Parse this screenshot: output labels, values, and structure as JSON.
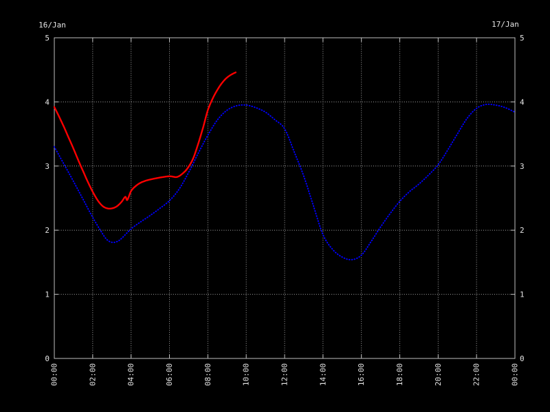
{
  "page": {
    "background": "#000000"
  },
  "colors": {
    "background": "#000000",
    "border": "#c0c0c0",
    "grid": "#a8a8a8",
    "text": "#e6e6e6",
    "series_blue": "#0000ff",
    "series_red": "#ff0000"
  },
  "chart_data": {
    "type": "line",
    "title": "",
    "grid": {
      "style": "dotted",
      "on": true
    },
    "legend": "none",
    "x_axis": {
      "range_hours": [
        0,
        24
      ],
      "tick_hours": [
        0,
        2,
        4,
        6,
        8,
        10,
        12,
        14,
        16,
        18,
        20,
        22,
        24
      ],
      "tick_labels": [
        "00:00",
        "02:00",
        "04:00",
        "06:00",
        "08:00",
        "10:00",
        "12:00",
        "14:00",
        "16:00",
        "18:00",
        "20:00",
        "22:00",
        "00:00"
      ],
      "labels_rotated_90": true
    },
    "y_axis_left": {
      "title": "16/Jan",
      "range": [
        0,
        5
      ],
      "tick_values": [
        0,
        1,
        2,
        3,
        4,
        5
      ],
      "tick_labels": [
        "0",
        "1",
        "2",
        "3",
        "4",
        "5"
      ]
    },
    "y_axis_right": {
      "title": "17/Jan",
      "range": [
        0,
        5
      ],
      "tick_values": [
        0,
        1,
        2,
        3,
        4,
        5
      ],
      "tick_labels": [
        "0",
        "1",
        "2",
        "3",
        "4",
        "5"
      ]
    },
    "series": [
      {
        "name": "16/Jan",
        "color": "#0000ff",
        "marker": "dots",
        "points": [
          [
            0,
            3.3
          ],
          [
            0.5,
            3.03
          ],
          [
            1,
            2.76
          ],
          [
            1.5,
            2.48
          ],
          [
            2,
            2.2
          ],
          [
            2.5,
            1.95
          ],
          [
            2.75,
            1.85
          ],
          [
            3,
            1.81
          ],
          [
            3.25,
            1.82
          ],
          [
            3.5,
            1.87
          ],
          [
            4,
            2.02
          ],
          [
            4.5,
            2.13
          ],
          [
            5,
            2.23
          ],
          [
            5.5,
            2.34
          ],
          [
            6,
            2.46
          ],
          [
            6.5,
            2.64
          ],
          [
            7,
            2.9
          ],
          [
            7.5,
            3.2
          ],
          [
            8,
            3.48
          ],
          [
            8.5,
            3.72
          ],
          [
            9,
            3.87
          ],
          [
            9.5,
            3.94
          ],
          [
            10,
            3.95
          ],
          [
            10.5,
            3.91
          ],
          [
            11,
            3.84
          ],
          [
            11.5,
            3.72
          ],
          [
            12,
            3.58
          ],
          [
            12.5,
            3.22
          ],
          [
            13,
            2.84
          ],
          [
            13.5,
            2.38
          ],
          [
            14,
            1.93
          ],
          [
            14.5,
            1.7
          ],
          [
            15,
            1.58
          ],
          [
            15.5,
            1.54
          ],
          [
            16,
            1.61
          ],
          [
            16.5,
            1.82
          ],
          [
            17,
            2.05
          ],
          [
            17.5,
            2.26
          ],
          [
            18,
            2.45
          ],
          [
            18.5,
            2.6
          ],
          [
            19,
            2.72
          ],
          [
            19.5,
            2.86
          ],
          [
            20,
            3.02
          ],
          [
            20.5,
            3.25
          ],
          [
            21,
            3.5
          ],
          [
            21.5,
            3.74
          ],
          [
            22,
            3.9
          ],
          [
            22.5,
            3.96
          ],
          [
            23,
            3.95
          ],
          [
            23.5,
            3.91
          ],
          [
            24,
            3.84
          ]
        ]
      },
      {
        "name": "17/Jan",
        "color": "#ff0000",
        "marker": "dense-dots",
        "points": [
          [
            0,
            3.92
          ],
          [
            0.25,
            3.77
          ],
          [
            0.5,
            3.61
          ],
          [
            0.75,
            3.44
          ],
          [
            1,
            3.27
          ],
          [
            1.25,
            3.09
          ],
          [
            1.5,
            2.92
          ],
          [
            1.75,
            2.75
          ],
          [
            2,
            2.6
          ],
          [
            2.25,
            2.47
          ],
          [
            2.5,
            2.38
          ],
          [
            2.75,
            2.34
          ],
          [
            3,
            2.34
          ],
          [
            3.25,
            2.37
          ],
          [
            3.5,
            2.44
          ],
          [
            3.7,
            2.52
          ],
          [
            3.8,
            2.47
          ],
          [
            4,
            2.61
          ],
          [
            4.25,
            2.69
          ],
          [
            4.5,
            2.74
          ],
          [
            4.75,
            2.77
          ],
          [
            5,
            2.79
          ],
          [
            5.5,
            2.82
          ],
          [
            6,
            2.84
          ],
          [
            6.4,
            2.83
          ],
          [
            6.75,
            2.9
          ],
          [
            7,
            2.99
          ],
          [
            7.25,
            3.13
          ],
          [
            7.5,
            3.35
          ],
          [
            7.75,
            3.6
          ],
          [
            8,
            3.87
          ],
          [
            8.25,
            4.05
          ],
          [
            8.5,
            4.19
          ],
          [
            8.75,
            4.3
          ],
          [
            9,
            4.38
          ],
          [
            9.25,
            4.43
          ],
          [
            9.45,
            4.46
          ]
        ]
      }
    ]
  }
}
